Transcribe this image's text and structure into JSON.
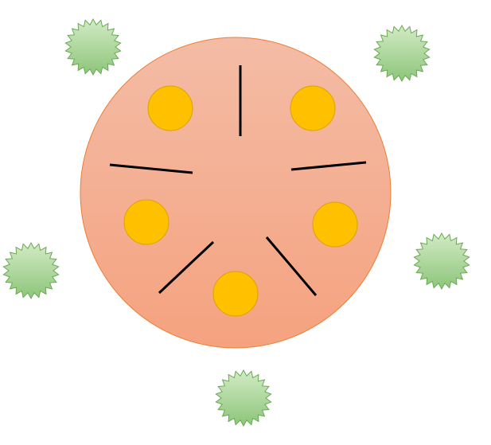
{
  "colors": {
    "background": "#ffffff",
    "circle_fill_top": "#f4bca6",
    "circle_fill_bottom": "#f5a27f",
    "circle_stroke": "#ed7d31",
    "coin_fill": "#ffc000",
    "coin_stroke": "#d9a400",
    "divider_stroke": "#000000",
    "burst_fill_top": "#d3ebc5",
    "burst_fill_bottom": "#8dc57a",
    "burst_stroke": "#6aaa55"
  },
  "icons": {
    "large_circle": "large-circle-icon",
    "coin": "coin-icon",
    "divider": "divider-line-icon",
    "burst": "starburst-icon"
  },
  "counts": {
    "segments_in_circle": 5,
    "coins_in_circle": 5,
    "bursts_outside_circle": 5
  }
}
